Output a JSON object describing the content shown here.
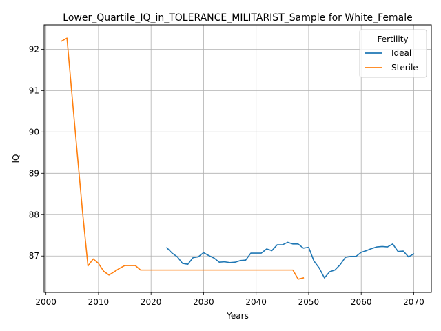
{
  "chart_data": {
    "type": "line",
    "title": "Lower_Quartile_IQ_in_TOLERANCE_MILITARIST_Sample for White_Female",
    "xlabel": "Years",
    "ylabel": "IQ",
    "xlim": [
      1999.65,
      2073.35
    ],
    "ylim": [
      86.12,
      92.59
    ],
    "xticks": [
      2000,
      2010,
      2020,
      2030,
      2040,
      2050,
      2060,
      2070
    ],
    "yticks": [
      87,
      88,
      89,
      90,
      91,
      92
    ],
    "grid": true,
    "legend": {
      "title": "Fertility",
      "placement": "top-right"
    },
    "series": [
      {
        "name": "Ideal",
        "color": "#1f77b4",
        "x": [
          2023,
          2024,
          2025,
          2026,
          2027,
          2028,
          2029,
          2030,
          2031,
          2032,
          2033,
          2034,
          2035,
          2036,
          2037,
          2038,
          2039,
          2040,
          2041,
          2042,
          2043,
          2044,
          2045,
          2046,
          2047,
          2048,
          2049,
          2050,
          2051,
          2052,
          2053,
          2054,
          2055,
          2056,
          2057,
          2058,
          2059,
          2060,
          2061,
          2062,
          2063,
          2064,
          2065,
          2066,
          2067,
          2068,
          2069,
          2070
        ],
        "y": [
          87.2,
          87.07,
          86.98,
          86.82,
          86.8,
          86.96,
          86.98,
          87.08,
          87.01,
          86.95,
          86.85,
          86.86,
          86.84,
          86.85,
          86.89,
          86.9,
          87.07,
          87.07,
          87.07,
          87.17,
          87.13,
          87.27,
          87.27,
          87.33,
          87.29,
          87.29,
          87.19,
          87.21,
          86.88,
          86.71,
          86.47,
          86.62,
          86.66,
          86.79,
          86.97,
          86.99,
          86.99,
          87.09,
          87.13,
          87.18,
          87.22,
          87.23,
          87.22,
          87.29,
          87.11,
          87.12,
          86.98,
          87.05
        ]
      },
      {
        "name": "Sterile",
        "color": "#ff7f0e",
        "x": [
          2003,
          2004,
          2005,
          2006,
          2007,
          2008,
          2009,
          2010,
          2011,
          2012,
          2013,
          2014,
          2015,
          2016,
          2017,
          2018,
          2019,
          2020,
          2021,
          2022,
          2023,
          2024,
          2025,
          2026,
          2027,
          2028,
          2029,
          2030,
          2031,
          2032,
          2033,
          2034,
          2035,
          2036,
          2037,
          2038,
          2039,
          2040,
          2041,
          2042,
          2043,
          2044,
          2045,
          2046,
          2047,
          2048,
          2049
        ],
        "y": [
          92.2,
          92.27,
          90.83,
          89.42,
          88.02,
          86.76,
          86.93,
          86.82,
          86.63,
          86.54,
          86.62,
          86.7,
          86.77,
          86.77,
          86.77,
          86.66,
          86.66,
          86.66,
          86.66,
          86.66,
          86.66,
          86.66,
          86.66,
          86.66,
          86.66,
          86.66,
          86.66,
          86.66,
          86.66,
          86.66,
          86.66,
          86.66,
          86.66,
          86.66,
          86.66,
          86.66,
          86.66,
          86.66,
          86.66,
          86.66,
          86.66,
          86.66,
          86.66,
          86.66,
          86.66,
          86.44,
          86.47
        ]
      }
    ]
  }
}
